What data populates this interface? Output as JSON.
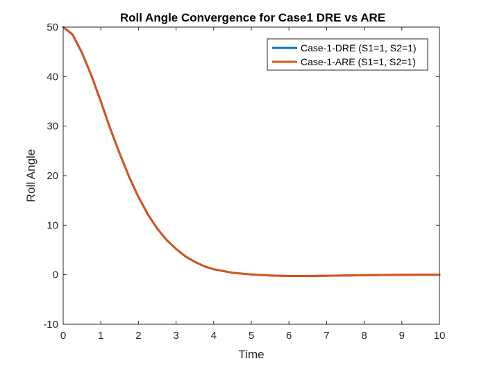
{
  "chart_data": {
    "type": "line",
    "title": "Roll Angle Convergence for Case1 DRE vs ARE",
    "xlabel": "Time",
    "ylabel": "Roll Angle",
    "xlim": [
      0,
      10
    ],
    "ylim": [
      -10,
      50
    ],
    "xticks": [
      0,
      1,
      2,
      3,
      4,
      5,
      6,
      7,
      8,
      9,
      10
    ],
    "yticks": [
      -10,
      0,
      10,
      20,
      30,
      40,
      50
    ],
    "grid": false,
    "legend_position": "top-right",
    "series": [
      {
        "name": "Case-1-DRE (S1=1, S2=1)",
        "color": "#0072bd",
        "x": [
          0,
          0.25,
          0.5,
          0.75,
          1,
          1.25,
          1.5,
          1.75,
          2,
          2.25,
          2.5,
          2.75,
          3,
          3.25,
          3.5,
          3.75,
          4,
          4.5,
          5,
          5.5,
          6,
          6.5,
          7,
          7.5,
          8,
          8.5,
          9,
          9.5,
          10
        ],
        "y": [
          50,
          48.5,
          44.8,
          40.2,
          35,
          29.5,
          24.5,
          19.8,
          15.7,
          12.2,
          9.3,
          7.0,
          5.2,
          3.7,
          2.6,
          1.7,
          1.1,
          0.4,
          0.05,
          -0.15,
          -0.25,
          -0.25,
          -0.2,
          -0.15,
          -0.1,
          -0.05,
          -0.02,
          0,
          0
        ]
      },
      {
        "name": "Case-1-ARE (S1=1, S2=1)",
        "color": "#d95319",
        "x": [
          0,
          0.25,
          0.5,
          0.75,
          1,
          1.25,
          1.5,
          1.75,
          2,
          2.25,
          2.5,
          2.75,
          3,
          3.25,
          3.5,
          3.75,
          4,
          4.5,
          5,
          5.5,
          6,
          6.5,
          7,
          7.5,
          8,
          8.5,
          9,
          9.5,
          10
        ],
        "y": [
          50,
          48.5,
          44.8,
          40.2,
          35,
          29.5,
          24.5,
          19.8,
          15.7,
          12.2,
          9.3,
          7.0,
          5.2,
          3.7,
          2.6,
          1.7,
          1.1,
          0.4,
          0.05,
          -0.15,
          -0.25,
          -0.25,
          -0.2,
          -0.15,
          -0.1,
          -0.05,
          -0.02,
          0,
          0
        ]
      }
    ]
  }
}
